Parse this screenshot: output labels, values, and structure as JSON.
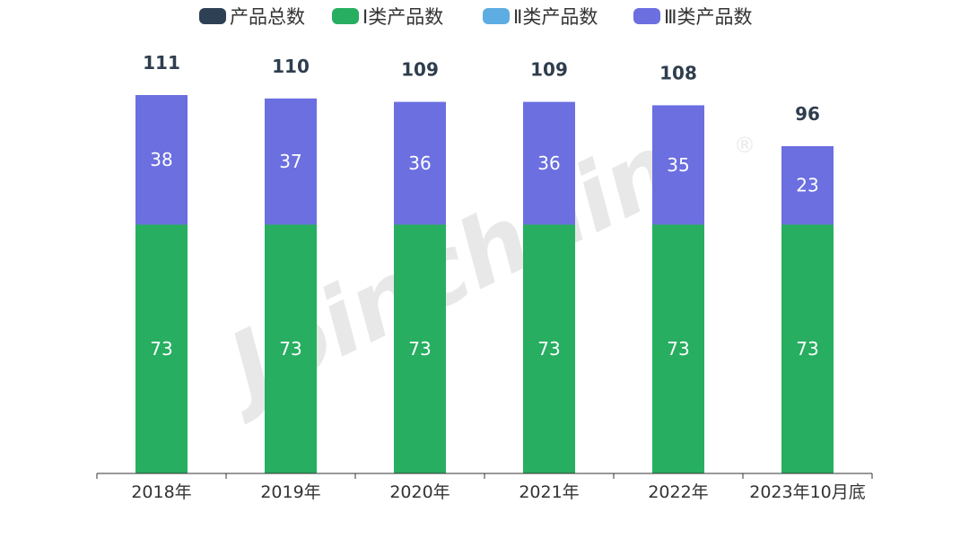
{
  "chart_data": {
    "type": "bar",
    "stacked": true,
    "categories": [
      "2018年",
      "2019年",
      "2020年",
      "2021年",
      "2022年",
      "2023年10月底"
    ],
    "legend": [
      {
        "name": "产品总数",
        "color": "#2e4053"
      },
      {
        "name": "Ⅰ类产品数",
        "color": "#27ae60"
      },
      {
        "name": "Ⅱ类产品数",
        "color": "#5dade2"
      },
      {
        "name": "Ⅲ类产品数",
        "color": "#6b6fe0"
      }
    ],
    "legend_position": "top",
    "series": [
      {
        "name": "Ⅰ类产品数",
        "color": "#27ae60",
        "values": [
          73,
          73,
          73,
          73,
          73,
          73
        ]
      },
      {
        "name": "Ⅱ类产品数",
        "color": "#5dade2",
        "values": [
          0,
          0,
          0,
          0,
          0,
          0
        ]
      },
      {
        "name": "Ⅲ类产品数",
        "color": "#6b6fe0",
        "values": [
          38,
          37,
          36,
          36,
          35,
          23
        ]
      }
    ],
    "totals": {
      "name": "产品总数",
      "values": [
        111,
        110,
        109,
        109,
        108,
        96
      ]
    },
    "ylim": [
      0,
      111
    ],
    "grid": false,
    "y_axis_visible": false
  },
  "watermark": {
    "text": "Joinchain",
    "mark": "®"
  }
}
